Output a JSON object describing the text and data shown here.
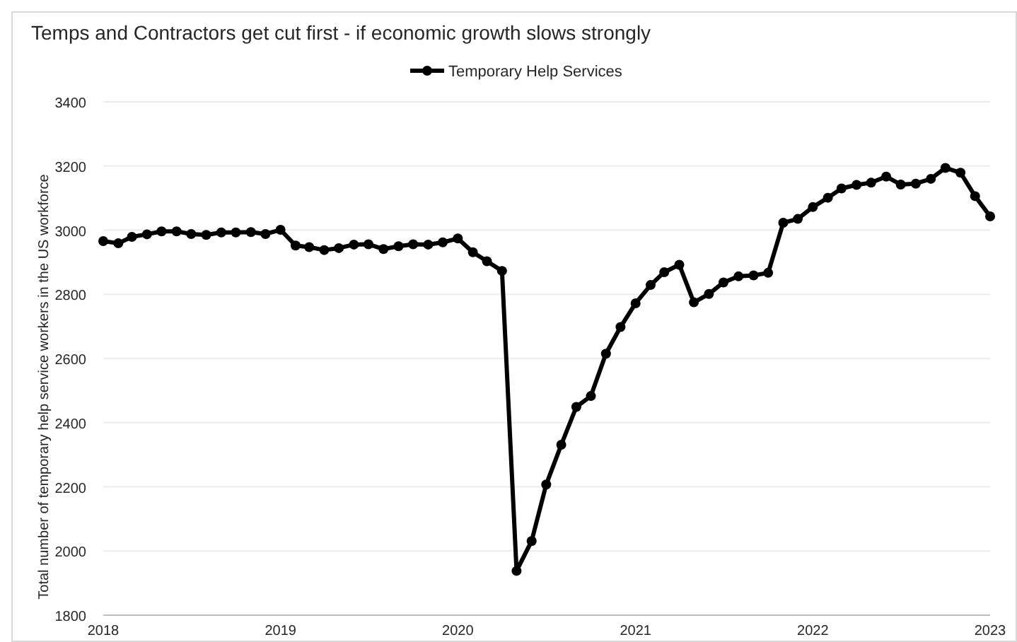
{
  "chart_data": {
    "type": "line",
    "title": "Temps and Contractors get cut first - if economic growth slows strongly",
    "ylabel": "Total number of temporary help service workers in the US workforce",
    "x": [
      "2018-01",
      "2018-02",
      "2018-03",
      "2018-04",
      "2018-05",
      "2018-06",
      "2018-07",
      "2018-08",
      "2018-09",
      "2018-10",
      "2018-11",
      "2018-12",
      "2019-01",
      "2019-02",
      "2019-03",
      "2019-04",
      "2019-05",
      "2019-06",
      "2019-07",
      "2019-08",
      "2019-09",
      "2019-10",
      "2019-11",
      "2019-12",
      "2020-01",
      "2020-02",
      "2020-03",
      "2020-04",
      "2020-05",
      "2020-06",
      "2020-07",
      "2020-08",
      "2020-09",
      "2020-10",
      "2020-11",
      "2020-12",
      "2021-01",
      "2021-02",
      "2021-03",
      "2021-04",
      "2021-05",
      "2021-06",
      "2021-07",
      "2021-08",
      "2021-09",
      "2021-10",
      "2021-11",
      "2021-12",
      "2022-01",
      "2022-02",
      "2022-03",
      "2022-04",
      "2022-05",
      "2022-06",
      "2022-07",
      "2022-08",
      "2022-09",
      "2022-10",
      "2022-11",
      "2022-12",
      "2023-01"
    ],
    "series": [
      {
        "name": "Temporary Help Services",
        "color": "#000000",
        "values": [
          2966,
          2959,
          2979,
          2987,
          2996,
          2996,
          2988,
          2985,
          2993,
          2993,
          2994,
          2988,
          3001,
          2952,
          2947,
          2938,
          2944,
          2955,
          2956,
          2941,
          2950,
          2956,
          2955,
          2962,
          2974,
          2931,
          2903,
          2873,
          1938,
          2031,
          2207,
          2331,
          2449,
          2483,
          2615,
          2698,
          2772,
          2829,
          2869,
          2892,
          2775,
          2801,
          2837,
          2856,
          2859,
          2867,
          3023,
          3035,
          3072,
          3101,
          3130,
          3141,
          3148,
          3167,
          3142,
          3145,
          3160,
          3194,
          3179,
          3106,
          3043
        ]
      }
    ],
    "xlim": [
      "2018-01",
      "2023-01"
    ],
    "xticks": [
      "2018",
      "2019",
      "2020",
      "2021",
      "2022",
      "2023"
    ],
    "ylim": [
      1800,
      3400
    ],
    "yticks": [
      1800,
      2000,
      2200,
      2400,
      2600,
      2800,
      3000,
      3200,
      3400
    ],
    "grid": "y",
    "legend": "top",
    "marker": "circle",
    "line_style": "solid"
  }
}
